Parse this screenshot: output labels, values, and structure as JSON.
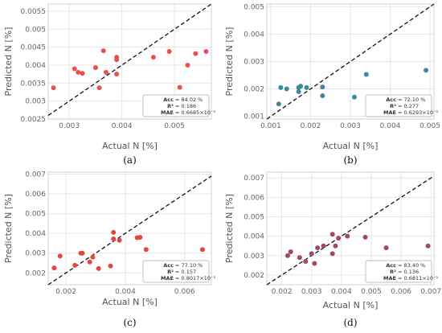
{
  "chart_data": [
    {
      "type": "scatter",
      "panel_label": "(a)",
      "xlabel": "Actual N [%]",
      "ylabel": "Predicted N [%]",
      "xlim": [
        0.0026,
        0.0057
      ],
      "ylim": [
        0.0025,
        0.0057
      ],
      "x_ticks": [
        "0.003",
        "0.004",
        "0.005"
      ],
      "y_ticks": [
        "0.0025",
        "0.003",
        "0.0035",
        "0.004",
        "0.0045",
        "0.005",
        "0.0055"
      ],
      "color": "#e8514f",
      "grid": true,
      "reference_line": "y = x (dashed)",
      "legend": "none",
      "stats": [
        {
          "key": "Acc",
          "value": "= 84.02 %"
        },
        {
          "key": "R²",
          "value": "= 0.186"
        },
        {
          "key": "MAE",
          "value": "= 0.6685×10⁻³"
        }
      ],
      "points": [
        [
          0.0027,
          0.00337
        ],
        [
          0.0031,
          0.0039
        ],
        [
          0.00317,
          0.0038
        ],
        [
          0.00325,
          0.00377
        ],
        [
          0.0035,
          0.00393
        ],
        [
          0.00357,
          0.00337
        ],
        [
          0.00365,
          0.0044
        ],
        [
          0.0037,
          0.0038
        ],
        [
          0.0039,
          0.00375
        ],
        [
          0.0039,
          0.00415
        ],
        [
          0.0039,
          0.00422
        ],
        [
          0.0046,
          0.00422
        ],
        [
          0.0049,
          0.00438
        ],
        [
          0.0051,
          0.00338
        ],
        [
          0.00525,
          0.004
        ],
        [
          0.0054,
          0.00432
        ],
        [
          0.0056,
          0.00438
        ]
      ]
    },
    {
      "type": "scatter",
      "panel_label": "(b)",
      "xlabel": "Actual N [%]",
      "ylabel": "Predicted N [%]",
      "xlim": [
        0.0009,
        0.0051
      ],
      "ylim": [
        0.0009,
        0.0051
      ],
      "x_ticks": [
        "0.001",
        "0.002",
        "0.003",
        "0.004",
        "0.005"
      ],
      "y_ticks": [
        "0.001",
        "0.002",
        "0.003",
        "0.004",
        "0.005"
      ],
      "color": "#3d8a96",
      "grid": true,
      "reference_line": "y = x (dashed)",
      "legend": "none",
      "stats": [
        {
          "key": "Acc",
          "value": "= 72.10 %"
        },
        {
          "key": "R²",
          "value": "= 0.277"
        },
        {
          "key": "MAE",
          "value": "= 0.6293×10⁻³"
        }
      ],
      "points": [
        [
          0.0012,
          0.00145
        ],
        [
          0.00125,
          0.00205
        ],
        [
          0.0014,
          0.002
        ],
        [
          0.0017,
          0.0019
        ],
        [
          0.0017,
          0.00205
        ],
        [
          0.0019,
          0.00205
        ],
        [
          0.00175,
          0.0021
        ],
        [
          0.0023,
          0.00207
        ],
        [
          0.0023,
          0.00175
        ],
        [
          0.0031,
          0.0017
        ],
        [
          0.0034,
          0.00253
        ],
        [
          0.0049,
          0.00268
        ]
      ]
    },
    {
      "type": "scatter",
      "panel_label": "(c)",
      "xlabel": "Actual N [%]",
      "ylabel": "Predicted N [%]",
      "xlim": [
        0.0014,
        0.0069
      ],
      "ylim": [
        0.0014,
        0.0071
      ],
      "x_ticks": [
        "0.002",
        "0.004",
        "0.006"
      ],
      "y_ticks": [
        "0.002",
        "0.003",
        "0.004",
        "0.005",
        "0.006",
        "0.007"
      ],
      "color": "#e0483e",
      "grid": true,
      "reference_line": "y = x (dashed)",
      "legend": "none",
      "stats": [
        {
          "key": "Acc",
          "value": "= 77.10 %"
        },
        {
          "key": "R²",
          "value": "= 0.157"
        },
        {
          "key": "MAE",
          "value": "= 0.8017×10⁻³"
        }
      ],
      "points": [
        [
          0.0016,
          0.00225
        ],
        [
          0.0018,
          0.00285
        ],
        [
          0.0023,
          0.00238
        ],
        [
          0.0025,
          0.003
        ],
        [
          0.00255,
          0.003
        ],
        [
          0.0028,
          0.00255
        ],
        [
          0.0029,
          0.0028
        ],
        [
          0.0031,
          0.00222
        ],
        [
          0.0035,
          0.00235
        ],
        [
          0.0036,
          0.00372
        ],
        [
          0.0036,
          0.00405
        ],
        [
          0.0038,
          0.00365
        ],
        [
          0.0044,
          0.00378
        ],
        [
          0.0045,
          0.0038
        ],
        [
          0.0047,
          0.00318
        ],
        [
          0.0066,
          0.00318
        ]
      ]
    },
    {
      "type": "scatter",
      "panel_label": "(d)",
      "xlabel": "Actual N [%]",
      "ylabel": "Predicted N [%]",
      "xlim": [
        0.0015,
        0.0071
      ],
      "ylim": [
        0.0015,
        0.0073
      ],
      "x_ticks": [
        "0.002",
        "0.003",
        "0.004",
        "0.005",
        "0.006",
        "0.007"
      ],
      "y_ticks": [
        "0.002",
        "0.003",
        "0.004",
        "0.005",
        "0.006",
        "0.007"
      ],
      "color": "#a04a5c",
      "grid": true,
      "reference_line": "y = x (dashed)",
      "legend": "none",
      "stats": [
        {
          "key": "Acc",
          "value": "= 83.40 %"
        },
        {
          "key": "R²",
          "value": "= 0.136"
        },
        {
          "key": "MAE",
          "value": "= 0.6811×10⁻³"
        }
      ],
      "points": [
        [
          0.0022,
          0.003
        ],
        [
          0.0023,
          0.0032
        ],
        [
          0.0026,
          0.0029
        ],
        [
          0.0028,
          0.0027
        ],
        [
          0.003,
          0.0031
        ],
        [
          0.0031,
          0.0026
        ],
        [
          0.0032,
          0.0034
        ],
        [
          0.0034,
          0.0035
        ],
        [
          0.0037,
          0.0041
        ],
        [
          0.0037,
          0.0031
        ],
        [
          0.0038,
          0.0035
        ],
        [
          0.0039,
          0.0039
        ],
        [
          0.0042,
          0.004
        ],
        [
          0.0048,
          0.00395
        ],
        [
          0.0055,
          0.0034
        ],
        [
          0.0069,
          0.0035
        ]
      ]
    }
  ]
}
